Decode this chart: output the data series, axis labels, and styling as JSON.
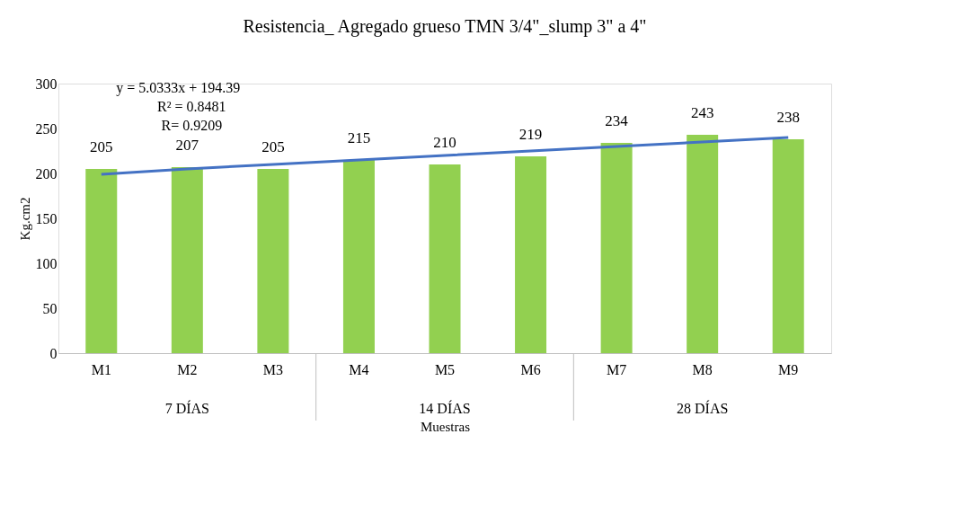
{
  "chart_data": {
    "type": "bar",
    "title": "Resistencia_ Agregado grueso TMN 3/4\"_slump 3\" a 4\"",
    "xlabel": "Muestras",
    "ylabel": "Kg.cm2",
    "categories": [
      "M1",
      "M2",
      "M3",
      "M4",
      "M5",
      "M6",
      "M7",
      "M8",
      "M9"
    ],
    "series": [
      {
        "color": "#92d050",
        "values": [
          205,
          207,
          205,
          215,
          210,
          219,
          234,
          243,
          238
        ],
        "value_labels": [
          "205",
          "207",
          "205",
          "215",
          "210",
          "219",
          "234",
          "243",
          "238"
        ]
      },
      {
        "type": "line",
        "color": "#4472c4",
        "values": [
          199,
          205,
          210,
          215,
          220,
          225,
          230,
          235,
          240
        ]
      }
    ],
    "ylim": [
      0,
      300
    ],
    "yticks": [
      0,
      50,
      100,
      150,
      200,
      250,
      300
    ],
    "grid": false,
    "annotations": [
      "y = 5.0333x + 194.39",
      "R² = 0.8481",
      "R= 0.9209",
      "7 DÍAS",
      "14 DÍAS",
      "28 DÍAS"
    ]
  }
}
